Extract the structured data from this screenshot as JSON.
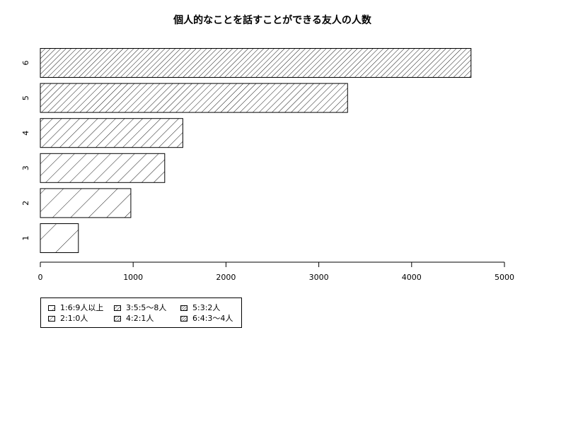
{
  "chart_data": {
    "type": "bar",
    "orientation": "horizontal",
    "title": "個人的なことを話すことができる友人の人数",
    "xlabel": "",
    "ylabel": "",
    "categories": [
      "1",
      "2",
      "3",
      "4",
      "5",
      "6"
    ],
    "values": [
      410,
      975,
      1340,
      1535,
      3310,
      4640
    ],
    "xlim": [
      0,
      5000
    ],
    "x_ticks": [
      "0",
      "1000",
      "2000",
      "3000",
      "4000",
      "5000"
    ],
    "grid": false,
    "legend_position": "bottom-left",
    "legend": [
      "1:6:9人以上",
      "2:1:0人",
      "3:5:5〜8人",
      "4:2:1人",
      "5:3:2人",
      "6:4:3〜4人"
    ],
    "fill_style": "diagonal hatching, denser for higher categories"
  }
}
